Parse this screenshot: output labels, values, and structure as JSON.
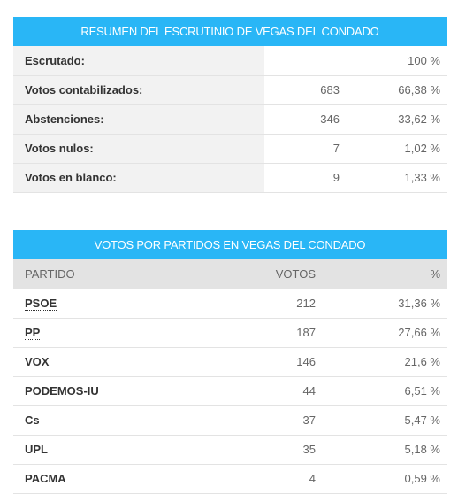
{
  "colors": {
    "header_bg": "#29b6f6",
    "label_bg": "#f2f2f2"
  },
  "summary": {
    "title": "RESUMEN DEL ESCRUTINIO DE VEGAS DEL CONDADO",
    "rows": [
      {
        "label": "Escrutado:",
        "count": "",
        "percent": "100 %"
      },
      {
        "label": "Votos contabilizados:",
        "count": "683",
        "percent": "66,38 %"
      },
      {
        "label": "Abstenciones:",
        "count": "346",
        "percent": "33,62 %"
      },
      {
        "label": "Votos nulos:",
        "count": "7",
        "percent": "1,02 %"
      },
      {
        "label": "Votos en blanco:",
        "count": "9",
        "percent": "1,33 %"
      }
    ]
  },
  "parties": {
    "title": "VOTOS POR PARTIDOS EN VEGAS DEL CONDADO",
    "columns": {
      "party": "PARTIDO",
      "votes": "VOTOS",
      "percent": "%"
    },
    "rows": [
      {
        "party": "PSOE",
        "votes": "212",
        "percent": "31,36 %"
      },
      {
        "party": "PP",
        "votes": "187",
        "percent": "27,66 %"
      },
      {
        "party": "VOX",
        "votes": "146",
        "percent": "21,6 %"
      },
      {
        "party": "PODEMOS-IU",
        "votes": "44",
        "percent": "6,51 %"
      },
      {
        "party": "Cs",
        "votes": "37",
        "percent": "5,47 %"
      },
      {
        "party": "UPL",
        "votes": "35",
        "percent": "5,18 %"
      },
      {
        "party": "PACMA",
        "votes": "4",
        "percent": "0,59 %"
      }
    ]
  }
}
